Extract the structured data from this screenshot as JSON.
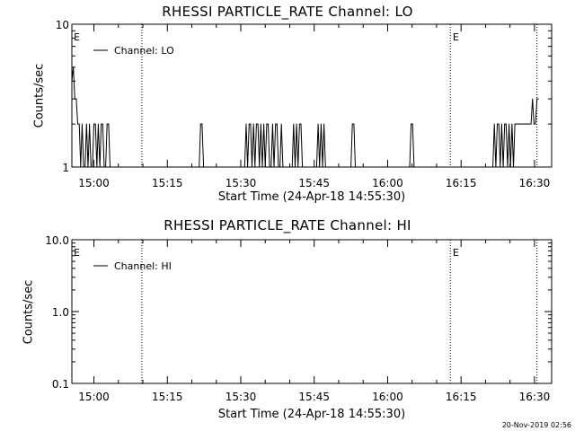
{
  "chart_data": [
    {
      "type": "line",
      "title": "RHESSI PARTICLE_RATE Channel: LO",
      "xlabel": "Start Time (24-Apr-18 14:55:30)",
      "ylabel": "Counts/sec",
      "yscale": "log",
      "ylim": [
        1,
        10
      ],
      "ytick_labels": [
        "1",
        "10"
      ],
      "xlim_minutes": [
        0,
        98
      ],
      "xtick_labels": [
        "15:00",
        "15:15",
        "15:30",
        "15:45",
        "16:00",
        "16:15",
        "16:30"
      ],
      "legend": "Channel: LO",
      "markers": [
        "E",
        "E"
      ],
      "series": [
        {
          "name": "Channel: LO",
          "x": [
            0,
            0.3,
            0.6,
            0.9,
            1.2,
            1.5,
            1.8,
            2.1,
            2.4,
            2.7,
            3.0,
            3.3,
            3.6,
            3.9,
            4.2,
            4.5,
            4.8,
            5.1,
            5.4,
            5.7,
            6.0,
            6.3,
            6.6,
            6.9,
            7.2,
            7.5,
            7.8,
            8.1,
            8.4,
            26.0,
            26.3,
            26.6,
            26.9,
            35.0,
            35.3,
            35.6,
            35.9,
            36.2,
            36.5,
            36.8,
            37.1,
            37.4,
            37.7,
            38.0,
            38.3,
            38.6,
            38.9,
            39.2,
            39.5,
            39.8,
            40.1,
            40.4,
            40.7,
            41.0,
            41.3,
            41.6,
            41.9,
            42.2,
            42.5,
            42.8,
            43.1,
            43.4,
            45.0,
            45.3,
            45.6,
            45.9,
            46.2,
            46.5,
            46.8,
            47.1,
            47.4,
            47.7,
            50.0,
            50.3,
            50.6,
            50.9,
            51.2,
            51.5,
            51.8,
            52.1,
            57.0,
            57.3,
            57.6,
            57.9,
            69.0,
            69.3,
            69.6,
            69.9,
            86.0,
            86.3,
            86.6,
            86.9,
            87.2,
            87.5,
            87.8,
            88.1,
            88.4,
            88.7,
            89.0,
            89.3,
            89.6,
            89.9,
            90.2,
            90.5,
            90.8,
            91.1,
            91.4,
            91.7,
            92.0,
            92.3,
            92.6,
            92.9,
            93.2,
            93.5,
            93.8,
            94.1,
            94.4,
            94.7,
            95.0,
            95.3
          ],
          "values": [
            4,
            5,
            3,
            3,
            2,
            2,
            1,
            2,
            1,
            1,
            2,
            1,
            2,
            1,
            1,
            2,
            2,
            1,
            2,
            1,
            2,
            2,
            1,
            1,
            2,
            2,
            1,
            1,
            1,
            1,
            2,
            2,
            1,
            1,
            1,
            2,
            1,
            2,
            2,
            1,
            2,
            1,
            2,
            2,
            1,
            2,
            1,
            2,
            1,
            2,
            2,
            1,
            1,
            2,
            1,
            2,
            2,
            1,
            1,
            2,
            1,
            1,
            1,
            2,
            1,
            2,
            1,
            2,
            2,
            1,
            1,
            1,
            1,
            2,
            1,
            2,
            1,
            2,
            1,
            1,
            1,
            2,
            2,
            1,
            1,
            2,
            2,
            1,
            1,
            2,
            1,
            2,
            2,
            1,
            2,
            1,
            2,
            2,
            1,
            2,
            1,
            2,
            1,
            2,
            2,
            2,
            2,
            2,
            2,
            2,
            2,
            2,
            2,
            2,
            2,
            3,
            2,
            2,
            3,
            3
          ]
        }
      ]
    },
    {
      "type": "line",
      "title": "RHESSI PARTICLE_RATE Channel: HI",
      "xlabel": "Start Time (24-Apr-18 14:55:30)",
      "ylabel": "Counts/sec",
      "yscale": "log",
      "ylim": [
        0.1,
        10.0
      ],
      "ytick_labels": [
        "0.1",
        "1.0",
        "10.0"
      ],
      "xlim_minutes": [
        0,
        98
      ],
      "xtick_labels": [
        "15:00",
        "15:15",
        "15:30",
        "15:45",
        "16:00",
        "16:15",
        "16:30"
      ],
      "legend": "Channel: HI",
      "markers": [
        "E",
        "E"
      ],
      "series": [
        {
          "name": "Channel: HI",
          "x": [],
          "values": []
        }
      ]
    }
  ],
  "footer": {
    "timestamp": "20-Nov-2019 02:56"
  },
  "style": {
    "line_color": "#000000",
    "background": "#ffffff"
  }
}
